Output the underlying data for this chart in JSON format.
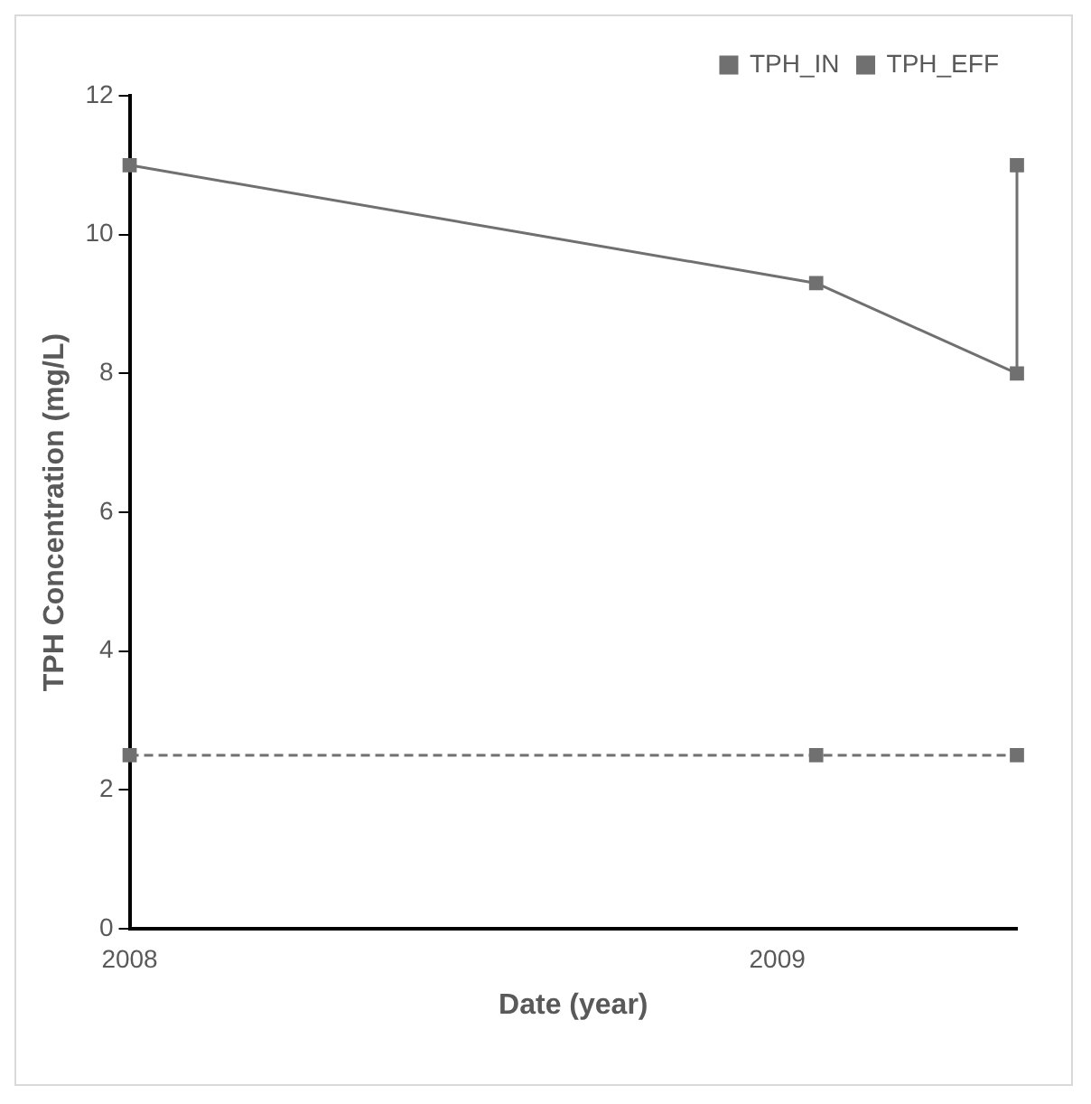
{
  "chart_data": {
    "type": "line",
    "xlabel": "Date (year)",
    "ylabel": "TPH Concentration (mg/L)",
    "xlim": [
      2008,
      2009.37
    ],
    "xticks": [
      2008,
      2009
    ],
    "ylim": [
      0,
      12
    ],
    "yticks": [
      0,
      2,
      4,
      6,
      8,
      10,
      12
    ],
    "series": [
      {
        "name": "TPH_IN",
        "color": "#707070",
        "x": [
          2008,
          2009.06,
          2009.37,
          2009.37
        ],
        "values": [
          11,
          9.3,
          8,
          11
        ],
        "line_style": "solid",
        "marker": "square"
      },
      {
        "name": "TPH_EFF",
        "color": "#707070",
        "x": [
          2008,
          2009.06,
          2009.37
        ],
        "values": [
          2.5,
          2.5,
          2.5
        ],
        "line_style": "dashed",
        "marker": "square"
      }
    ],
    "legend": "top right",
    "grid": false
  }
}
